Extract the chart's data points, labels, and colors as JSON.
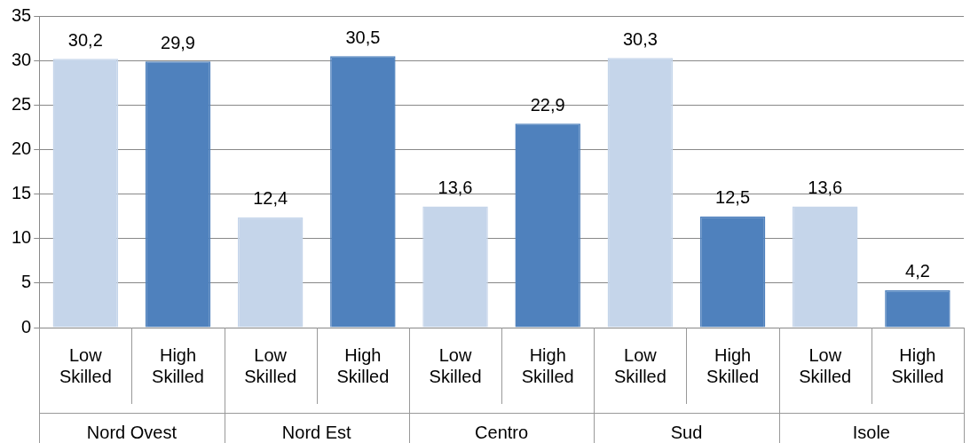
{
  "chart_data": {
    "type": "bar",
    "categories": [
      "Low Skilled",
      "High Skilled",
      "Low Skilled",
      "High Skilled",
      "Low Skilled",
      "High Skilled",
      "Low Skilled",
      "High Skilled",
      "Low Skilled",
      "High Skilled"
    ],
    "values": [
      30.2,
      29.9,
      12.4,
      30.5,
      13.6,
      22.9,
      30.3,
      12.5,
      13.6,
      4.2
    ],
    "colors": [
      "#c5d5ea",
      "#4f81bd",
      "#c5d5ea",
      "#4f81bd",
      "#c5d5ea",
      "#4f81bd",
      "#c5d5ea",
      "#4f81bd",
      "#c5d5ea",
      "#4f81bd"
    ],
    "value_labels": [
      "30,2",
      "29,9",
      "12,4",
      "30,5",
      "13,6",
      "22,9",
      "30,3",
      "12,5",
      "13,6",
      "4,2"
    ],
    "annotations": [
      "Nord Ovest",
      "Nord Est",
      "Centro",
      "Sud",
      "Isole"
    ],
    "ylim": [
      0,
      35
    ],
    "yticks": [
      0,
      5,
      10,
      15,
      20,
      25,
      30,
      35
    ],
    "grid": "y",
    "legend": false
  }
}
